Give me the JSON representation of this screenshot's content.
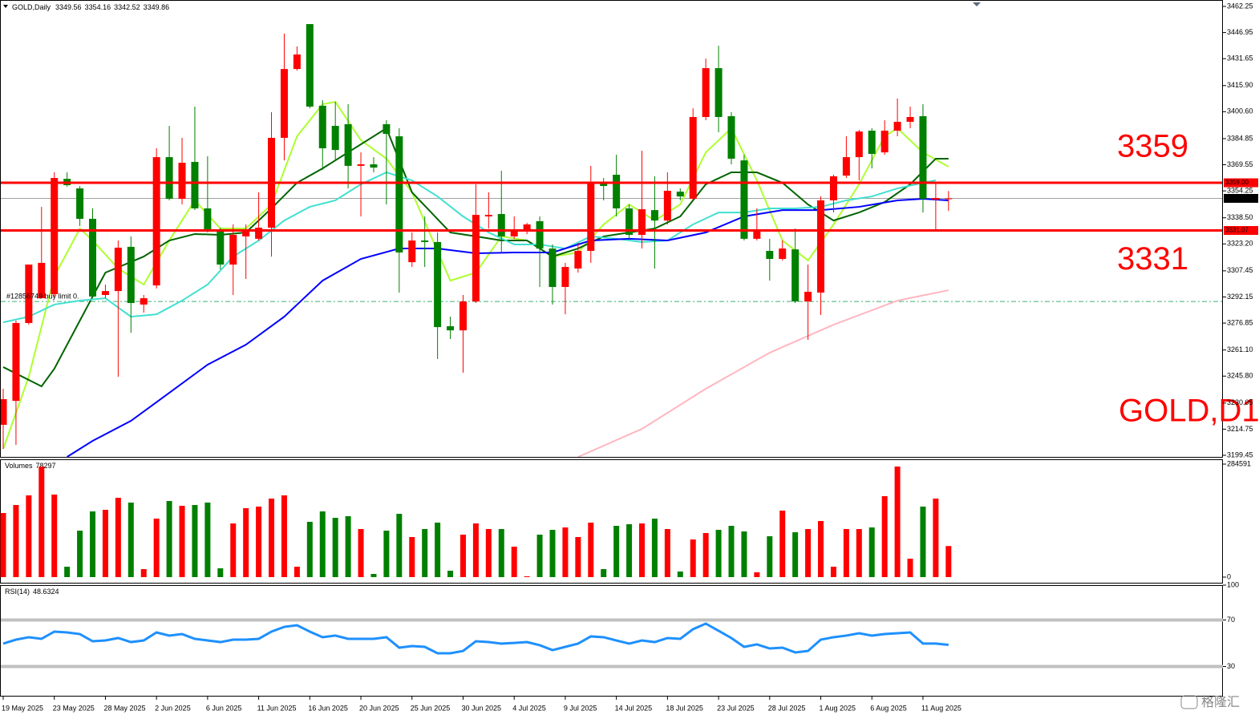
{
  "chart_data": [
    {
      "type": "candlestick",
      "title": "GOLD,Daily",
      "categories": [
        "19 May 2025",
        null,
        null,
        null,
        "23 May 2025",
        null,
        null,
        null,
        "28 May 2025",
        null,
        null,
        null,
        "2 Jun 2025",
        null,
        null,
        null,
        "6 Jun 2025",
        null,
        null,
        null,
        "11 Jun 2025",
        null,
        null,
        null,
        "16 Jun 2025",
        null,
        null,
        null,
        "20 Jun 2025",
        null,
        null,
        null,
        "25 Jun 2025",
        null,
        null,
        null,
        "30 Jun 2025",
        null,
        null,
        null,
        "4 Jul 2025",
        null,
        null,
        null,
        "9 Jul 2025",
        null,
        null,
        null,
        "14 Jul 2025",
        null,
        null,
        null,
        "18 Jul 2025",
        null,
        null,
        null,
        "23 Jul 2025",
        null,
        null,
        null,
        "28 Jul 2025",
        null,
        null,
        null,
        "1 Aug 2025",
        null,
        null,
        null,
        "6 Aug 2025",
        null,
        null,
        null,
        "11 Aug 2025",
        null,
        null
      ],
      "open": [
        3217.3,
        3231.3,
        3276.9,
        3291.4,
        3293.8,
        3361.3,
        3355.7,
        3337.9,
        3293.3,
        3295.6,
        3321.5,
        3287.7,
        3298.9,
        3374.0,
        3349.6,
        3371.2,
        3344.0,
        3331.8,
        3311.1,
        3327.6,
        3326.2,
        3332.7,
        3385.3,
        3425.6,
        3451.9,
        3404.1,
        3392.3,
        3393.3,
        3368.9,
        3369.8,
        3393.3,
        3386.2,
        3312.5,
        3325.2,
        3324.3,
        3275.0,
        3272.6,
        3289.5,
        3339.3,
        3340.7,
        3327.6,
        3330.8,
        3336.5,
        3320.5,
        3298.0,
        3308.8,
        3319.1,
        3358.5,
        3363.7,
        3344.0,
        3328.5,
        3343.0,
        3336.9,
        3353.8,
        3349.6,
        3397.5,
        3426.1,
        3398.0,
        3372.1,
        3326.2,
        3319.1,
        3314.4,
        3320.0,
        3289.5,
        3294.7,
        3348.7,
        3363.2,
        3374.0,
        3389.5,
        3376.8,
        3389.5,
        3394.7,
        3398.0,
        3349.1,
        3349.56
      ],
      "high": [
        3238.4,
        3278.3,
        3311.1,
        3344.9,
        3365.1,
        3365.1,
        3357.1,
        3344.0,
        3299.4,
        3325.2,
        3327.6,
        3293.3,
        3379.2,
        3392.3,
        3385.3,
        3403.6,
        3374.5,
        3332.7,
        3334.6,
        3334.6,
        3353.4,
        3400.3,
        3446.3,
        3438.8,
        3451.9,
        3407.3,
        3406.4,
        3405.0,
        3376.8,
        3374.0,
        3395.6,
        3390.9,
        3329.9,
        3339.3,
        3329.9,
        3280.6,
        3293.3,
        3358.1,
        3353.4,
        3366.0,
        3339.3,
        3335.5,
        3339.3,
        3322.9,
        3312.1,
        3323.8,
        3368.9,
        3361.8,
        3375.4,
        3346.3,
        3377.8,
        3362.8,
        3365.1,
        3355.7,
        3402.6,
        3431.7,
        3439.2,
        3400.3,
        3375.4,
        3344.0,
        3326.2,
        3325.2,
        3332.2,
        3311.1,
        3351.0,
        3363.7,
        3386.2,
        3390.0,
        3390.9,
        3395.6,
        3408.3,
        3403.6,
        3405.0,
        3359.0,
        3354.16
      ],
      "low": [
        3203.2,
        3205.5,
        3275.9,
        3291.4,
        3292.4,
        3356.7,
        3333.7,
        3292.4,
        3291.4,
        3245.4,
        3271.2,
        3283.0,
        3297.1,
        3348.7,
        3346.3,
        3343.0,
        3329.9,
        3308.3,
        3293.3,
        3302.7,
        3325.2,
        3315.8,
        3372.1,
        3424.7,
        3402.6,
        3366.5,
        3372.1,
        3355.7,
        3339.3,
        3365.1,
        3346.3,
        3294.7,
        3309.7,
        3309.7,
        3255.8,
        3267.5,
        3247.8,
        3288.6,
        3332.2,
        3318.2,
        3326.2,
        3328.9,
        3298.0,
        3287.7,
        3282.0,
        3306.4,
        3312.1,
        3348.7,
        3339.3,
        3326.2,
        3320.5,
        3308.8,
        3334.6,
        3348.7,
        3348.7,
        3395.6,
        3388.6,
        3369.8,
        3325.2,
        3325.2,
        3301.7,
        3313.5,
        3288.6,
        3267.0,
        3281.6,
        3341.6,
        3361.8,
        3360.4,
        3367.4,
        3375.4,
        3386.2,
        3390.9,
        3341.6,
        3331.3,
        3342.52
      ],
      "close": [
        3232.3,
        3276.9,
        3311.1,
        3312.1,
        3361.8,
        3357.6,
        3337.9,
        3292.4,
        3295.6,
        3321.0,
        3288.6,
        3291.4,
        3374.0,
        3349.6,
        3370.7,
        3344.0,
        3331.3,
        3311.1,
        3328.5,
        3331.3,
        3332.7,
        3385.3,
        3425.6,
        3434.1,
        3403.6,
        3379.2,
        3378.2,
        3368.9,
        3369.8,
        3367.9,
        3387.6,
        3318.2,
        3325.2,
        3324.3,
        3274.5,
        3272.6,
        3289.5,
        3340.2,
        3340.2,
        3327.6,
        3331.8,
        3334.6,
        3320.5,
        3298.0,
        3309.7,
        3319.1,
        3359.0,
        3357.1,
        3344.0,
        3328.5,
        3343.5,
        3336.9,
        3354.3,
        3351.0,
        3397.5,
        3426.1,
        3397.5,
        3373.1,
        3326.2,
        3330.8,
        3314.4,
        3320.5,
        3289.5,
        3295.2,
        3348.7,
        3362.8,
        3374.0,
        3389.0,
        3375.9,
        3389.5,
        3394.7,
        3397.5,
        3349.6,
        3350.1,
        3349.86
      ],
      "up_color": "#ff0000",
      "down_color": "#008000",
      "ylim": [
        3199.45,
        3462.25
      ],
      "yticks": [
        3462.25,
        3446.95,
        3431.65,
        {
          "value": 3415.9,
          "label": "3415.90"
        },
        {
          "value": 3400.6,
          "label": "3400.60"
        },
        3384.85,
        3369.55,
        3354.25,
        {
          "value": 3338.5,
          "label": "3338.50"
        },
        {
          "value": 3323.2,
          "label": "3323.20"
        },
        3307.45,
        3292.15,
        3276.85,
        {
          "value": 3261.1,
          "label": "3261.10"
        },
        {
          "value": 3245.8,
          "label": "3245.80"
        },
        3230.05,
        3214.75,
        3199.45
      ],
      "lines": [
        {
          "color": "#adff2f",
          "x": [
            0,
            2,
            4,
            6,
            7,
            9,
            11,
            13,
            15,
            17,
            19,
            21,
            23,
            25,
            26,
            28,
            30,
            32,
            35,
            37,
            39,
            41,
            43,
            45,
            47,
            49,
            51,
            53,
            55,
            57,
            59,
            61,
            63,
            65,
            67,
            69,
            70,
            72,
            74
          ],
          "values": [
            3203.2,
            3245.4,
            3304.1,
            3332.2,
            3325.2,
            3308.8,
            3299.4,
            3325.2,
            3348.7,
            3332.2,
            3332.2,
            3346.3,
            3386.2,
            3405.0,
            3406.4,
            3383.9,
            3373.1,
            3353.4,
            3301.7,
            3306.4,
            3327.6,
            3325.2,
            3315.8,
            3318.2,
            3334.6,
            3346.3,
            3336.9,
            3346.3,
            3376.8,
            3390.9,
            3360.4,
            3325.2,
            3313.5,
            3334.6,
            3358.1,
            3386.2,
            3390.9,
            3376.8,
            3368.4
          ]
        },
        {
          "color": "#006400",
          "x": [
            0,
            3,
            4,
            6,
            8,
            11,
            13,
            15,
            17,
            19,
            21,
            23,
            25,
            27,
            30,
            32,
            35,
            37,
            39,
            41,
            43,
            45,
            47,
            49,
            51,
            53,
            55,
            57,
            59,
            61,
            63,
            65,
            67,
            69,
            71,
            73,
            74
          ],
          "values": [
            3251.1,
            3239.8,
            3250.1,
            3278.3,
            3306.4,
            3315.8,
            3325.2,
            3329.0,
            3328.5,
            3329.9,
            3344.0,
            3359.0,
            3367.4,
            3376.8,
            3390.9,
            3353.4,
            3329.9,
            3327.6,
            3325.2,
            3325.2,
            3315.8,
            3320.5,
            3327.6,
            3329.9,
            3332.2,
            3339.3,
            3358.1,
            3365.1,
            3365.1,
            3359.0,
            3346.3,
            3336.9,
            3341.6,
            3347.7,
            3358.1,
            3373.1,
            3373.1
          ]
        },
        {
          "color": "#40e0d0",
          "x": [
            0,
            2,
            4,
            6,
            8,
            10,
            12,
            14,
            16,
            18,
            20,
            22,
            24,
            26,
            28,
            30,
            32,
            34,
            36,
            38,
            40,
            42,
            44,
            46,
            48,
            50,
            52,
            54,
            56,
            58,
            60,
            62,
            64,
            66,
            68,
            70,
            72,
            73
          ],
          "values": [
            3277.3,
            3280.6,
            3287.7,
            3290.0,
            3291.4,
            3280.6,
            3282.0,
            3290.0,
            3299.4,
            3315.8,
            3325.2,
            3336.9,
            3344.9,
            3348.7,
            3358.1,
            3365.1,
            3360.4,
            3351.0,
            3339.3,
            3329.9,
            3322.9,
            3322.9,
            3320.5,
            3327.6,
            3326.2,
            3324.3,
            3325.2,
            3334.6,
            3341.6,
            3341.6,
            3344.0,
            3344.0,
            3344.9,
            3348.7,
            3351.0,
            3355.7,
            3359.0,
            3360.4
          ]
        },
        {
          "color": "#0000ff",
          "x": [
            5,
            7,
            10,
            13,
            16,
            19,
            22,
            25,
            28,
            31,
            34,
            37,
            40,
            43,
            46,
            49,
            52,
            55,
            58,
            61,
            64,
            67,
            70,
            72,
            74
          ],
          "values": [
            3198.5,
            3207.9,
            3219.6,
            3236.0,
            3252.5,
            3264.2,
            3280.6,
            3301.7,
            3314.4,
            3320.5,
            3320.5,
            3317.7,
            3318.2,
            3318.2,
            3325.2,
            3326.2,
            3325.2,
            3329.9,
            3339.3,
            3343.0,
            3343.0,
            3344.9,
            3348.7,
            3349.6,
            3348.7
          ]
        },
        {
          "color": "#ffb6c1",
          "x": [
            45,
            50,
            55,
            60,
            65,
            70,
            74
          ],
          "values": [
            3198.5,
            3214.9,
            3238.4,
            3259.5,
            3275.9,
            3290.0,
            3296.1
          ]
        }
      ],
      "levels": [
        {
          "value": 3359,
          "label": "3359.00",
          "color": "#ff0000"
        },
        {
          "value": 3331.07,
          "label": "3331.07",
          "color": "#ff0000",
          "annotation": "3331"
        }
      ],
      "order": {
        "label": "#12856749 buy limit 0.",
        "value": 3289.5,
        "color": "#3cb371"
      },
      "annotation": "GOLD,D1",
      "watermark": "格隆汇"
    },
    {
      "type": "bar",
      "title": "Volumes",
      "values": [
        161440,
        181620,
        205836,
        278484,
        207854,
        26234,
        117044,
        165476,
        169512,
        199782,
        187674,
        20180,
        147314,
        191710,
        179602,
        181620,
        187674,
        22198,
        135206,
        173548,
        177584,
        197764,
        205836,
        26234,
        139242,
        165476,
        149332,
        153368,
        121080,
        8072,
        117044,
        159422,
        100900,
        121080,
        137224,
        16144,
        106954,
        135206,
        121080,
        121080,
        76684,
        2018,
        106954,
        119062,
        125116,
        100900,
        137224,
        20180,
        129152,
        133188,
        135206,
        147314,
        121080,
        14126,
        94846,
        110990,
        119062,
        129152,
        115026,
        12108,
        102918,
        167494,
        113008,
        121080,
        141260,
        26234,
        121080,
        121080,
        125116,
        203818,
        278484,
        46414,
        177584,
        197764,
        78297
      ],
      "up_color": "#ff0000",
      "down_color": "#008000",
      "ylim": [
        0,
        284591
      ],
      "yticks": [
        0,
        284591
      ]
    },
    {
      "type": "line",
      "title": "RSI(14)",
      "values": [
        49.7,
        53.1,
        55.2,
        53.8,
        60.0,
        59.3,
        57.9,
        51.7,
        52.4,
        54.5,
        51.0,
        52.4,
        59.3,
        56.6,
        57.9,
        53.8,
        52.4,
        51.0,
        53.1,
        53.1,
        53.8,
        60.0,
        64.1,
        65.5,
        60.0,
        55.2,
        56.6,
        53.8,
        53.8,
        53.8,
        55.2,
        46.2,
        47.6,
        46.9,
        41.4,
        41.4,
        43.4,
        51.7,
        51.0,
        49.7,
        50.3,
        51.0,
        48.3,
        44.1,
        46.9,
        49.7,
        55.9,
        55.2,
        52.4,
        49.7,
        52.4,
        51.0,
        54.5,
        53.8,
        62.1,
        66.9,
        60.7,
        54.5,
        46.9,
        49.0,
        45.5,
        46.2,
        42.1,
        43.4,
        53.1,
        55.2,
        56.6,
        58.6,
        56.6,
        57.9,
        58.6,
        59.3,
        49.7,
        49.7,
        48.6324
      ],
      "color": "#1e90ff",
      "ylim": [
        0,
        100
      ],
      "yticks": [
        30,
        70,
        100
      ],
      "levels": [
        30,
        70
      ],
      "level_color": "#c0c0c0"
    }
  ]
}
